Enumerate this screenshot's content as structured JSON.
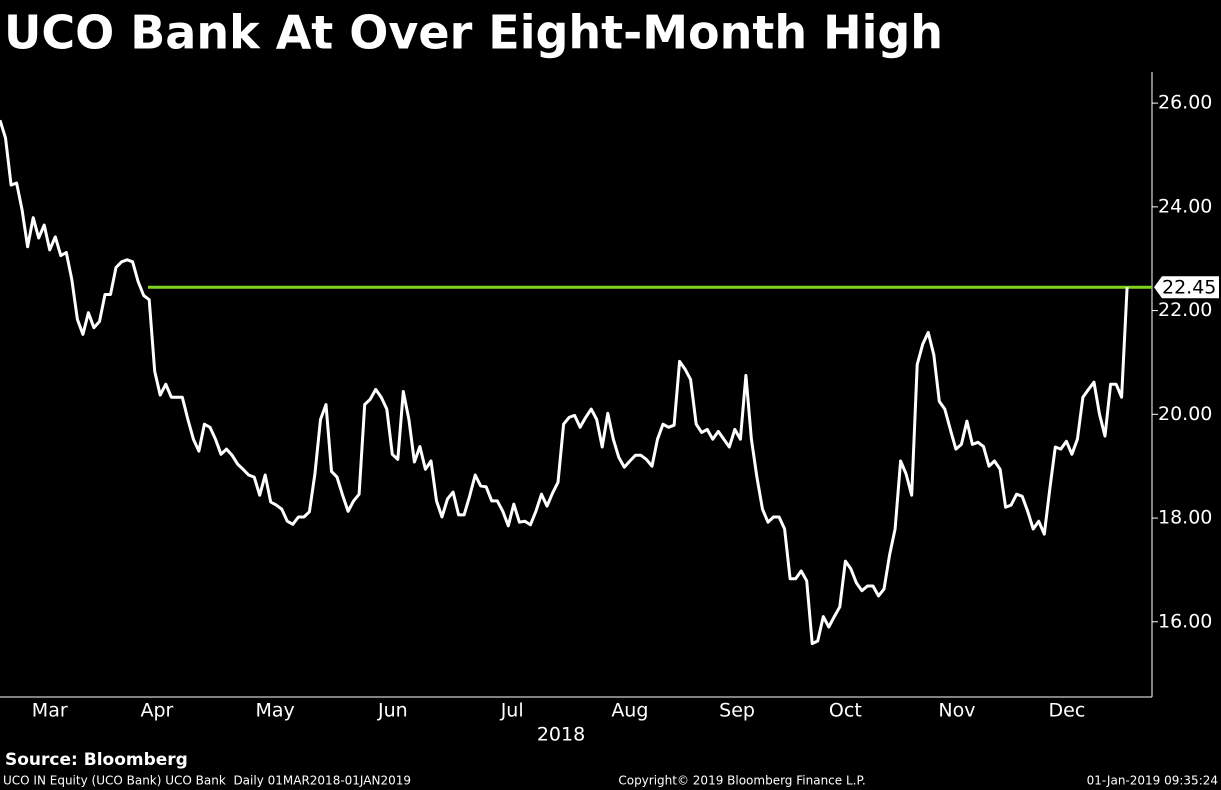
{
  "chart_data": {
    "type": "line",
    "title": "UCO Bank At Over Eight-Month High",
    "source": "Source: Bloomberg",
    "x_axis_label": "2018",
    "color": "#ffffff",
    "values": [
      25.67,
      25.33,
      24.42,
      24.46,
      23.94,
      23.23,
      23.79,
      23.4,
      23.65,
      23.17,
      23.42,
      23.06,
      23.12,
      22.6,
      21.83,
      21.54,
      21.96,
      21.67,
      21.79,
      22.31,
      22.31,
      22.83,
      22.94,
      22.98,
      22.94,
      22.56,
      22.29,
      22.21,
      20.83,
      20.37,
      20.58,
      20.33,
      20.33,
      20.33,
      19.9,
      19.52,
      19.29,
      19.81,
      19.75,
      19.52,
      19.23,
      19.33,
      19.21,
      19.04,
      18.94,
      18.83,
      18.79,
      18.44,
      18.83,
      18.31,
      18.25,
      18.17,
      17.94,
      17.88,
      18.02,
      18.02,
      18.12,
      18.85,
      19.9,
      20.19,
      18.9,
      18.79,
      18.44,
      18.13,
      18.33,
      18.46,
      20.19,
      20.29,
      20.48,
      20.33,
      20.1,
      19.23,
      19.13,
      20.44,
      19.9,
      19.08,
      19.38,
      18.94,
      19.1,
      18.33,
      18.02,
      18.37,
      18.5,
      18.06,
      18.06,
      18.42,
      18.83,
      18.62,
      18.6,
      18.33,
      18.33,
      18.13,
      17.85,
      18.27,
      17.92,
      17.94,
      17.87,
      18.13,
      18.46,
      18.23,
      18.48,
      18.69,
      19.81,
      19.94,
      19.98,
      19.75,
      19.94,
      20.1,
      19.9,
      19.37,
      20.02,
      19.52,
      19.17,
      18.98,
      19.1,
      19.21,
      19.21,
      19.13,
      19.0,
      19.52,
      19.81,
      19.75,
      19.79,
      21.02,
      20.87,
      20.67,
      19.81,
      19.65,
      19.71,
      19.52,
      19.67,
      19.52,
      19.37,
      19.71,
      19.52,
      20.75,
      19.52,
      18.79,
      18.17,
      17.92,
      18.02,
      18.02,
      17.79,
      16.83,
      16.83,
      16.98,
      16.79,
      15.58,
      15.63,
      16.1,
      15.9,
      16.1,
      16.29,
      17.17,
      17.02,
      16.75,
      16.6,
      16.69,
      16.69,
      16.5,
      16.63,
      17.29,
      17.79,
      19.1,
      18.85,
      18.44,
      20.96,
      21.35,
      21.58,
      21.15,
      20.25,
      20.1,
      19.71,
      19.33,
      19.42,
      19.87,
      19.42,
      19.46,
      19.38,
      19.0,
      19.1,
      18.94,
      18.21,
      18.25,
      18.46,
      18.42,
      18.13,
      17.79,
      17.94,
      17.69,
      18.56,
      19.37,
      19.33,
      19.48,
      19.23,
      19.52,
      20.33,
      20.48,
      20.62,
      20.0,
      19.58,
      20.58,
      20.58,
      20.33,
      22.45
    ],
    "xlim": [
      0,
      208.5
    ],
    "xticks": [
      {
        "value": 9,
        "label": "Mar"
      },
      {
        "value": 28.4,
        "label": "Apr"
      },
      {
        "value": 49.8,
        "label": "May"
      },
      {
        "value": 71.1,
        "label": "Jun"
      },
      {
        "value": 92.7,
        "label": "Jul"
      },
      {
        "value": 114,
        "label": "Aug"
      },
      {
        "value": 133.4,
        "label": "Sep"
      },
      {
        "value": 153,
        "label": "Oct"
      },
      {
        "value": 173.2,
        "label": "Nov"
      },
      {
        "value": 193.1,
        "label": "Dec"
      }
    ],
    "ylim": [
      14.55,
      26.6
    ],
    "yticks": [
      {
        "value": 16,
        "label": "16.00"
      },
      {
        "value": 18,
        "label": "18.00"
      },
      {
        "value": 20,
        "label": "20.00"
      },
      {
        "value": 22,
        "label": "22.00"
      },
      {
        "value": 24,
        "label": "24.00"
      },
      {
        "value": 26,
        "label": "26.00"
      }
    ],
    "hline": {
      "value": 22.45,
      "label": "22.45",
      "color": "#7ed321"
    }
  },
  "footer": {
    "left": "UCO IN Equity (UCO Bank) UCO Bank  Daily 01MAR2018-01JAN2019",
    "center": "Copyright© 2019 Bloomberg Finance L.P.",
    "right": "01-Jan-2019 09:35:24"
  }
}
